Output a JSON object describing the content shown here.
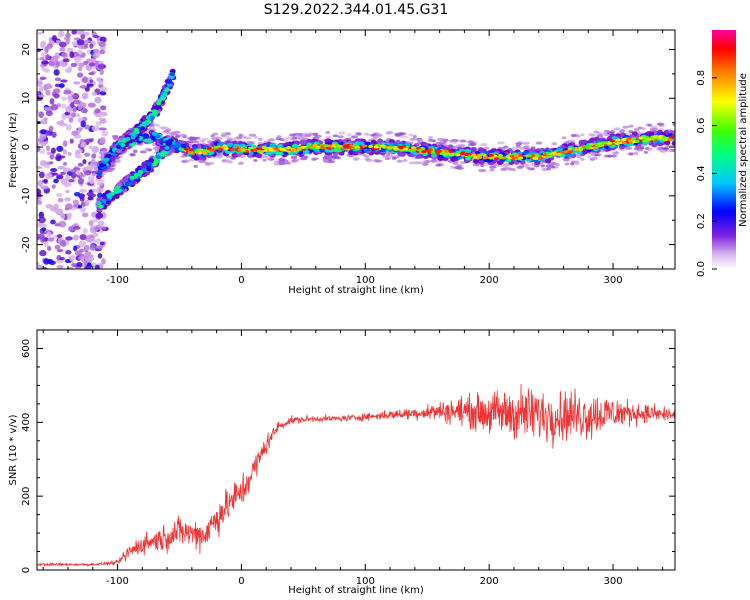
{
  "figure": {
    "title": "S129.2022.344.01.45.G31"
  },
  "chart_data": [
    {
      "type": "heatmap",
      "xlabel": "Height of straight line (km)",
      "ylabel": "Frequency (Hz)",
      "xlim": [
        -165,
        350
      ],
      "ylim": [
        -25,
        24
      ],
      "x_ticks": [
        -100,
        0,
        100,
        200,
        300
      ],
      "y_ticks": [
        -20,
        -10,
        0,
        10,
        20
      ],
      "colorbar": {
        "label": "Normalized spectral amplitude",
        "range": [
          0,
          1
        ],
        "ticks": [
          0.0,
          0.2,
          0.4,
          0.6,
          0.8
        ],
        "colormap": [
          "#ffffff",
          "#c080e0",
          "#6000d0",
          "#0000ff",
          "#00c0ff",
          "#00ff80",
          "#40ff00",
          "#ffff00",
          "#ff8000",
          "#ff0000",
          "#ff0080"
        ]
      },
      "ridge": {
        "x": [
          -115,
          -100,
          -90,
          -80,
          -70,
          -60,
          -50,
          -40,
          -30,
          -20,
          0,
          20,
          40,
          60,
          80,
          100,
          120,
          140,
          160,
          180,
          200,
          220,
          240,
          260,
          280,
          300,
          320,
          350
        ],
        "frequency": [
          -5,
          0,
          1,
          2,
          2,
          1,
          0,
          -1,
          -1,
          0,
          -0.5,
          -0.5,
          -0.5,
          0,
          0,
          0,
          0,
          -0.5,
          -1,
          -1.5,
          -2,
          -2,
          -2,
          -1,
          0,
          1,
          1.5,
          2
        ]
      },
      "side_branches": [
        {
          "x": [
            -115,
            -100,
            -85,
            -70,
            -58
          ],
          "frequency": [
            -12,
            -9,
            -6,
            -3,
            0
          ]
        },
        {
          "x": [
            -100,
            -85,
            -70,
            -62,
            -55
          ],
          "frequency": [
            0,
            3,
            7,
            11,
            15
          ]
        }
      ],
      "noise_region_x": [
        -165,
        -110
      ]
    },
    {
      "type": "line",
      "xlabel": "Height of straight line (km)",
      "ylabel": "SNR (10 * v/v)",
      "xlim": [
        -165,
        350
      ],
      "ylim": [
        0,
        650
      ],
      "x_ticks": [
        -100,
        0,
        100,
        200,
        300
      ],
      "y_ticks": [
        0,
        200,
        400,
        600
      ],
      "color": "#ee3333",
      "series": [
        {
          "x": [
            -165,
            -140,
            -120,
            -100,
            -90,
            -80,
            -70,
            -60,
            -50,
            -40,
            -30,
            -20,
            -10,
            0,
            10,
            20,
            30,
            40,
            60,
            80,
            100,
            120,
            140,
            160,
            180,
            200,
            220,
            240,
            260,
            280,
            300,
            320,
            350
          ],
          "values": [
            15,
            15,
            15,
            20,
            50,
            70,
            80,
            90,
            105,
            100,
            95,
            140,
            180,
            210,
            270,
            340,
            390,
            405,
            410,
            410,
            415,
            420,
            425,
            430,
            430,
            425,
            425,
            420,
            420,
            420,
            425,
            425,
            420
          ],
          "spread": [
            5,
            5,
            5,
            8,
            35,
            40,
            45,
            55,
            60,
            55,
            70,
            70,
            70,
            70,
            60,
            40,
            20,
            15,
            12,
            12,
            15,
            18,
            25,
            40,
            60,
            80,
            110,
            110,
            100,
            100,
            70,
            40,
            30
          ]
        }
      ]
    }
  ]
}
